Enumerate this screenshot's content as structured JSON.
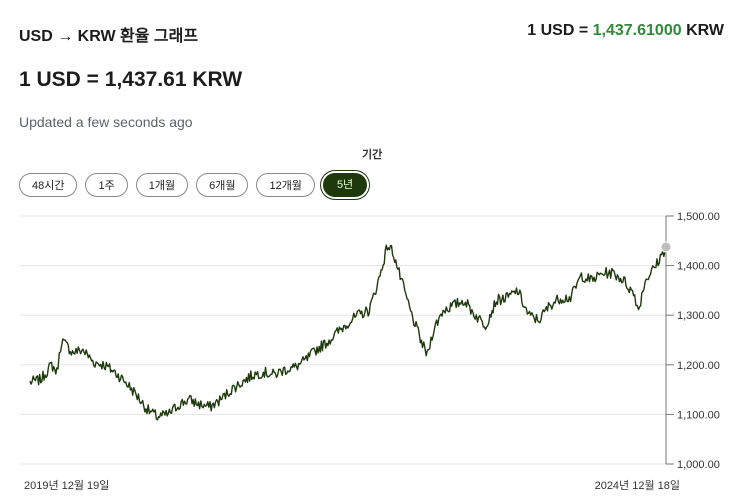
{
  "header": {
    "title": "USD → KRW 환율 그래프",
    "rate_prefix": "1 USD = ",
    "rate_value": "1,437.61000",
    "rate_suffix": " KRW"
  },
  "main": {
    "big_rate": "1 USD = 1,437.61 KRW",
    "updated": "Updated a few seconds ago"
  },
  "period": {
    "label": "기간",
    "options": [
      "48시간",
      "1주",
      "1개월",
      "6개월",
      "12개월",
      "5년"
    ],
    "selected": "5년"
  },
  "colors": {
    "accent": "#2e8b3a",
    "line": "#1e3a0c",
    "active_button_bg": "#1e3a0c",
    "active_button_text": "#e6ffd0"
  },
  "chart_data": {
    "type": "line",
    "title": "",
    "xlabel": "",
    "ylabel": "",
    "ylim": [
      1000,
      1500
    ],
    "y_ticks": [
      "1,000.00",
      "1,100.00",
      "1,200.00",
      "1,300.00",
      "1,400.00",
      "1,500.00"
    ],
    "x_labels": [
      "2019년 12월 19일",
      "2024년 12월 18일"
    ],
    "grid": true,
    "series": [
      {
        "x": [
          "2019-12-19",
          "2020-01-19",
          "2020-02-19",
          "2020-03-05",
          "2020-03-19",
          "2020-04-19",
          "2020-05-19",
          "2020-06-19",
          "2020-07-19",
          "2020-08-19",
          "2020-09-19",
          "2020-10-19",
          "2020-11-19",
          "2020-12-19",
          "2021-01-19",
          "2021-02-19",
          "2021-03-19",
          "2021-04-19",
          "2021-05-19",
          "2021-06-19",
          "2021-07-19",
          "2021-08-19",
          "2021-09-19",
          "2021-10-19",
          "2021-11-19",
          "2021-12-19",
          "2022-01-19",
          "2022-02-19",
          "2022-03-19",
          "2022-04-19",
          "2022-05-19",
          "2022-06-19",
          "2022-07-19",
          "2022-08-19",
          "2022-09-19",
          "2022-10-10",
          "2022-10-25",
          "2022-11-19",
          "2022-12-19",
          "2023-01-19",
          "2023-02-02",
          "2023-02-19",
          "2023-03-19",
          "2023-04-19",
          "2023-05-19",
          "2023-06-19",
          "2023-07-19",
          "2023-08-19",
          "2023-09-19",
          "2023-10-19",
          "2023-11-19",
          "2023-12-19",
          "2024-01-19",
          "2024-02-19",
          "2024-03-19",
          "2024-04-19",
          "2024-05-19",
          "2024-06-19",
          "2024-07-19",
          "2024-08-19",
          "2024-09-19",
          "2024-09-30",
          "2024-10-19",
          "2024-11-19",
          "2024-12-18"
        ],
        "y": [
          1165,
          1170,
          1200,
          1185,
          1250,
          1225,
          1230,
          1205,
          1200,
          1185,
          1165,
          1140,
          1110,
          1095,
          1100,
          1120,
          1130,
          1120,
          1115,
          1130,
          1150,
          1165,
          1180,
          1185,
          1180,
          1190,
          1195,
          1210,
          1230,
          1245,
          1265,
          1285,
          1300,
          1310,
          1380,
          1440,
          1430,
          1370,
          1300,
          1240,
          1220,
          1270,
          1310,
          1320,
          1330,
          1300,
          1280,
          1330,
          1335,
          1350,
          1300,
          1290,
          1320,
          1335,
          1335,
          1380,
          1370,
          1385,
          1385,
          1370,
          1340,
          1310,
          1370,
          1400,
          1437.61
        ]
      }
    ],
    "current_value": 1437.61
  }
}
